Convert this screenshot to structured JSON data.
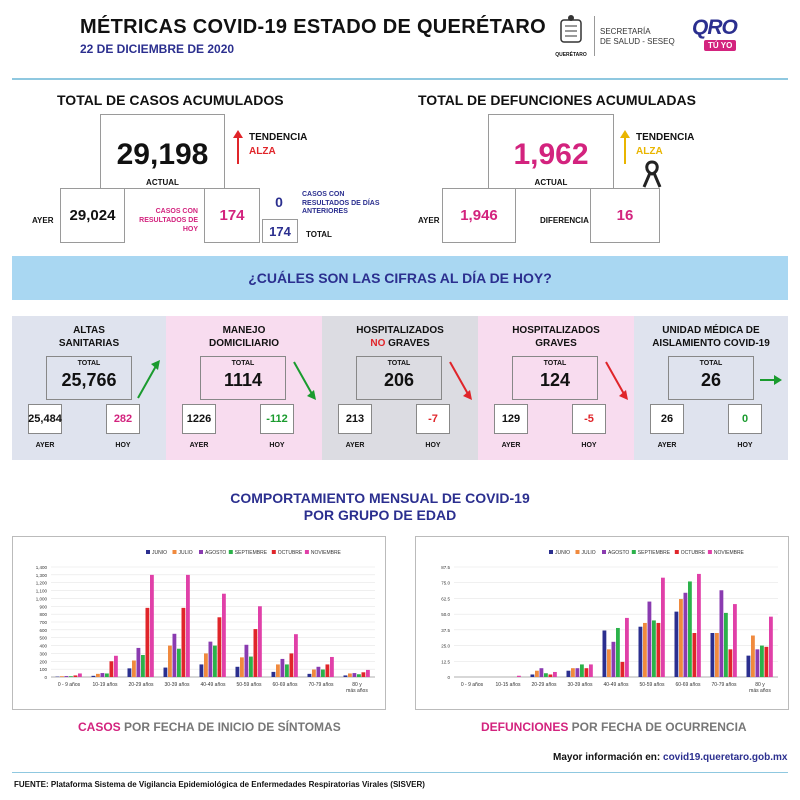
{
  "header": {
    "title": "MÉTRICAS COVID-19 ESTADO DE QUERÉTARO",
    "date": "22 DE DICIEMBRE DE 2020",
    "logo_text": "QUERÉTARO",
    "secretaria_line1": "SECRETARÍA",
    "secretaria_line2": "DE SALUD - SESEQ",
    "qro_text": "QRO",
    "tuyo_text": "TÚ YO"
  },
  "casos": {
    "title": "TOTAL DE CASOS ACUMULADOS",
    "actual_value": "29,198",
    "actual_label": "ACTUAL",
    "trend_label": "TENDENCIA",
    "trend_value": "ALZA",
    "ayer_label": "AYER",
    "ayer_value": "29,024",
    "hoy_label": "CASOS CON RESULTADOS DE HOY",
    "hoy_value": "174",
    "anteriores_value": "0",
    "anteriores_label": "CASOS CON RESULTADOS DE DÍAS ANTERIORES",
    "total_value": "174",
    "total_label": "TOTAL"
  },
  "defunciones": {
    "title": "TOTAL DE DEFUNCIONES ACUMULADAS",
    "actual_value": "1,962",
    "actual_label": "ACTUAL",
    "trend_label": "TENDENCIA",
    "trend_value": "ALZA",
    "ayer_label": "AYER",
    "ayer_value": "1,946",
    "dif_label": "DIFERENCIA",
    "dif_value": "16"
  },
  "banner": "¿CUÁLES SON LAS CIFRAS AL DÍA DE HOY?",
  "panels": [
    {
      "title1": "ALTAS",
      "title2": "SANITARIAS",
      "total_label": "TOTAL",
      "total": "25,766",
      "ayer": "25,484",
      "hoy": "282",
      "ayer_label": "AYER",
      "hoy_label": "HOY",
      "bg": "#dfe3ee",
      "hoy_color": "#d3237e",
      "trend": "up",
      "trend_color": "#1a9b2e"
    },
    {
      "title1": "MANEJO",
      "title2": "DOMICILIARIO",
      "total_label": "TOTAL",
      "total": "1114",
      "ayer": "1226",
      "hoy": "-112",
      "ayer_label": "AYER",
      "hoy_label": "HOY",
      "bg": "#f8dcef",
      "hoy_color": "#1a9b2e",
      "trend": "down",
      "trend_color": "#1a9b2e"
    },
    {
      "title1": "HOSPITALIZADOS",
      "title2a": "NO",
      "title2b": " GRAVES",
      "total_label": "TOTAL",
      "total": "206",
      "ayer": "213",
      "hoy": "-7",
      "ayer_label": "AYER",
      "hoy_label": "HOY",
      "bg": "#dcdce2",
      "hoy_color": "#e0252a",
      "trend": "down",
      "trend_color": "#e0252a"
    },
    {
      "title1": "HOSPITALIZADOS",
      "title2": "GRAVES",
      "total_label": "TOTAL",
      "total": "124",
      "ayer": "129",
      "hoy": "-5",
      "ayer_label": "AYER",
      "hoy_label": "HOY",
      "bg": "#f8dcef",
      "hoy_color": "#e0252a",
      "trend": "down",
      "trend_color": "#e0252a"
    },
    {
      "title1": "UNIDAD MÉDICA DE",
      "title2": "AISLAMIENTO COVID-19",
      "total_label": "TOTAL",
      "total": "26",
      "ayer": "26",
      "hoy": "0",
      "ayer_label": "AYER",
      "hoy_label": "HOY",
      "bg": "#dfe3ee",
      "hoy_color": "#1a9b2e",
      "trend": "right",
      "trend_color": "#1a9b2e"
    }
  ],
  "comportamiento": {
    "line1": "COMPORTAMIENTO MENSUAL DE COVID-19",
    "line2": "POR GRUPO DE EDAD"
  },
  "captions": {
    "casos_a": "CASOS",
    "casos_b": " POR FECHA DE INICIO DE SÍNTOMAS",
    "def_a": "DEFUNCIONES",
    "def_b": " POR FECHA DE OCURRENCIA"
  },
  "info_label": "Mayor información en: ",
  "info_url": "covid19.queretaro.gob.mx",
  "source": "FUENTE: Plataforma Sistema  de Vigilancia Epidemiológica de Enfermedades Respiratorias Virales (SISVER)",
  "colors": {
    "JUNIO": "#2b2f8f",
    "JULIO": "#f08a3e",
    "AGOSTO": "#8a3bb0",
    "SEPTIEMBRE": "#2bb24a",
    "OCTUBRE": "#e0252a",
    "NOVIEMBRE": "#e040a8"
  },
  "chart_data": [
    {
      "type": "bar",
      "title": "",
      "categories": [
        "0 - 9 años",
        "10-19 años",
        "20-29 años",
        "30-39 años",
        "40-49 años",
        "50-59 años",
        "60-69 años",
        "70-79 años",
        "80 y más años"
      ],
      "ylim": [
        0,
        1400
      ],
      "yticks": [
        "0",
        "100",
        "200",
        "300",
        "400",
        "500",
        "600",
        "700",
        "800",
        "900",
        "1,000",
        "1,100",
        "1,200",
        "1,300",
        "1,400"
      ],
      "series": [
        {
          "name": "JUNIO",
          "values": [
            5,
            15,
            110,
            120,
            160,
            130,
            65,
            40,
            20
          ]
        },
        {
          "name": "JULIO",
          "values": [
            10,
            40,
            210,
            400,
            300,
            250,
            160,
            95,
            45
          ]
        },
        {
          "name": "AGOSTO",
          "values": [
            12,
            50,
            370,
            550,
            450,
            410,
            230,
            130,
            50
          ]
        },
        {
          "name": "SEPTIEMBRE",
          "values": [
            10,
            45,
            280,
            360,
            400,
            260,
            160,
            95,
            35
          ]
        },
        {
          "name": "OCTUBRE",
          "values": [
            20,
            200,
            880,
            880,
            760,
            610,
            300,
            160,
            60
          ]
        },
        {
          "name": "NOVIEMBRE",
          "values": [
            45,
            270,
            1300,
            1300,
            1060,
            900,
            545,
            255,
            90
          ]
        }
      ]
    },
    {
      "type": "bar",
      "title": "",
      "categories": [
        "0 - 9 años",
        "10-15 años",
        "20-29 años",
        "30-39 años",
        "40-49 años",
        "50-59 años",
        "60-69 años",
        "70-79 años",
        "80 y más años"
      ],
      "ylim": [
        0,
        87.5
      ],
      "yticks": [
        "0",
        "12.5",
        "25.0",
        "37.5",
        "50.0",
        "62.5",
        "75.0",
        "87.5"
      ],
      "series": [
        {
          "name": "JUNIO",
          "values": [
            0,
            0,
            2,
            5,
            37,
            40,
            52,
            35,
            17
          ]
        },
        {
          "name": "JULIO",
          "values": [
            0,
            0,
            5,
            7,
            22,
            43,
            62,
            35,
            33
          ]
        },
        {
          "name": "AGOSTO",
          "values": [
            0,
            0,
            7,
            7,
            28,
            60,
            67,
            69,
            22
          ]
        },
        {
          "name": "SEPTIEMBRE",
          "values": [
            0,
            0,
            3,
            10,
            39,
            45,
            76,
            51,
            25
          ]
        },
        {
          "name": "OCTUBRE",
          "values": [
            0,
            0,
            2,
            7,
            12,
            43,
            35,
            22,
            24
          ]
        },
        {
          "name": "NOVIEMBRE",
          "values": [
            0,
            1,
            4,
            10,
            47,
            79,
            82,
            58,
            48
          ]
        }
      ]
    }
  ]
}
